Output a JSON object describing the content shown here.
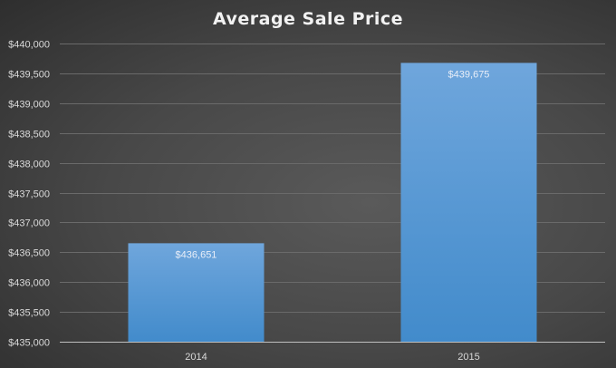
{
  "chart_data": {
    "type": "bar",
    "title": "Average Sale Price",
    "categories": [
      "2014",
      "2015"
    ],
    "values": [
      436651,
      439675
    ],
    "data_labels": [
      "$436,651",
      "$439,675"
    ],
    "xlabel": "",
    "ylabel": "",
    "ylim": [
      435000,
      440000
    ],
    "yticks": [
      435000,
      435500,
      436000,
      436500,
      437000,
      437500,
      438000,
      438500,
      439000,
      439500,
      440000
    ],
    "ytick_labels": [
      "$435,000",
      "$435,500",
      "$436,000",
      "$436,500",
      "$437,000",
      "$437,500",
      "$438,000",
      "$438,500",
      "$439,000",
      "$439,500",
      "$440,000"
    ],
    "grid": true,
    "legend": "none",
    "colors": {
      "bar_top": "#6fa6dc",
      "bar_bottom": "#428bcb",
      "grid": "#6a6a6a",
      "axis": "#bfbfbf"
    }
  }
}
